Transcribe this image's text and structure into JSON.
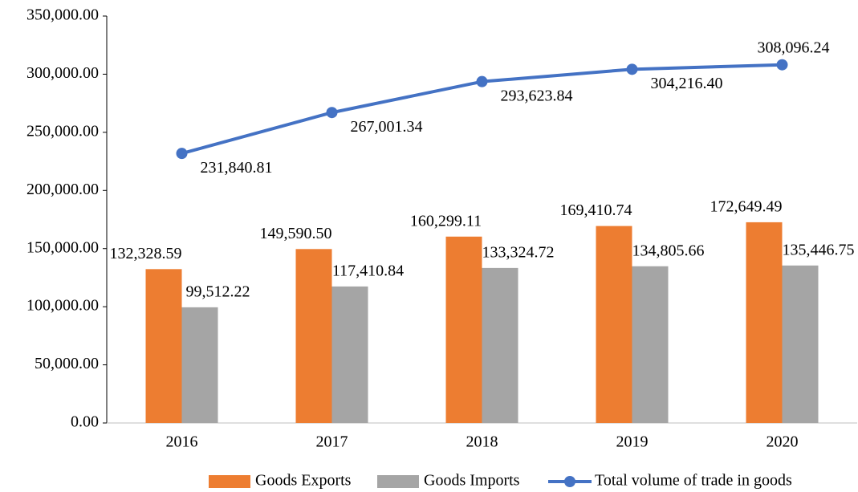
{
  "chart_data": {
    "type": "bar",
    "categories": [
      "2016",
      "2017",
      "2018",
      "2019",
      "2020"
    ],
    "series": [
      {
        "name": "Goods Exports",
        "color": "#ed7d31",
        "values": [
          132328.59,
          149590.5,
          160299.11,
          169410.74,
          172649.49
        ],
        "value_labels": [
          "132,328.59",
          "149,590.50",
          "160,299.11",
          "169,410.74",
          "172,649.49"
        ]
      },
      {
        "name": "Goods Imports",
        "color": "#a5a5a5",
        "values": [
          99512.22,
          117410.84,
          133324.72,
          134805.66,
          135446.75
        ],
        "value_labels": [
          "99,512.22",
          "117,410.84",
          "133,324.72",
          "134,805.66",
          "135,446.75"
        ]
      },
      {
        "name": "Total volume of trade in goods",
        "color": "#4472c4",
        "type": "line",
        "values": [
          231840.81,
          267001.34,
          293623.84,
          304216.4,
          308096.24
        ],
        "value_labels": [
          "231,840.81",
          "267,001.34",
          "293,623.84",
          "304,216.40",
          "308,096.24"
        ]
      }
    ],
    "ylim": [
      0,
      350000
    ],
    "yticks": [
      {
        "value": 0,
        "label": "0.00"
      },
      {
        "value": 50000,
        "label": "50,000.00"
      },
      {
        "value": 100000,
        "label": "100,000.00"
      },
      {
        "value": 150000,
        "label": "150,000.00"
      },
      {
        "value": 200000,
        "label": "200,000.00"
      },
      {
        "value": 250000,
        "label": "250,000.00"
      },
      {
        "value": 300000,
        "label": "300,000.00"
      },
      {
        "value": 350000,
        "label": "350,000.00"
      }
    ],
    "grid": false,
    "legend": "bottom"
  }
}
